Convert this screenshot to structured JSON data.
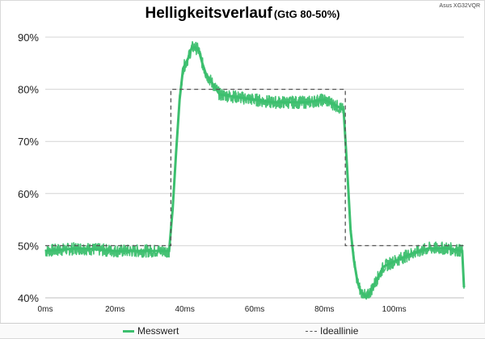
{
  "chart_data": {
    "type": "line",
    "title": "Helligkeitsverlauf",
    "subtitle": "(GtG 80-50%)",
    "watermark": "Asus XG32VQR",
    "xlabel": "",
    "ylabel": "",
    "xlim": [
      0,
      120
    ],
    "ylim": [
      40,
      90
    ],
    "x_ticks": [
      0,
      20,
      40,
      60,
      80,
      100
    ],
    "x_tick_labels": [
      "0ms",
      "20ms",
      "40ms",
      "60ms",
      "80ms",
      "100ms"
    ],
    "y_ticks": [
      40,
      50,
      60,
      70,
      80,
      90
    ],
    "y_tick_labels": [
      "40%",
      "50%",
      "60%",
      "70%",
      "80%",
      "90%"
    ],
    "grid": "horizontal",
    "legend_position": "bottom",
    "series": [
      {
        "name": "Messwert",
        "color": "#3cbf6e",
        "style": "solid-noisy",
        "noise_amplitude": 1.2,
        "x": [
          0,
          10,
          20,
          30,
          35.5,
          36.5,
          37.5,
          38.5,
          39.5,
          41,
          42,
          43,
          44,
          45,
          46,
          48,
          50,
          55,
          60,
          65,
          70,
          75,
          80,
          83,
          85.5,
          86.5,
          87.5,
          88.5,
          89.5,
          90.5,
          91.5,
          92,
          93,
          95,
          97,
          100,
          105,
          110,
          115,
          119.5,
          120
        ],
        "y": [
          49,
          49.5,
          49,
          49,
          49,
          57,
          68,
          78,
          84,
          86,
          88,
          88,
          87.5,
          85,
          83,
          81,
          79,
          78.5,
          78,
          77.5,
          77.5,
          77.5,
          78,
          77,
          76,
          65,
          53,
          47,
          43,
          41,
          40.5,
          40,
          41,
          43.5,
          46,
          47,
          48.5,
          49.5,
          49.5,
          49,
          42
        ]
      },
      {
        "name": "Ideallinie",
        "color": "#555555",
        "style": "dashed",
        "x": [
          0,
          36,
          36,
          86,
          86,
          120
        ],
        "y": [
          50,
          50,
          80,
          80,
          50,
          50
        ]
      }
    ]
  }
}
